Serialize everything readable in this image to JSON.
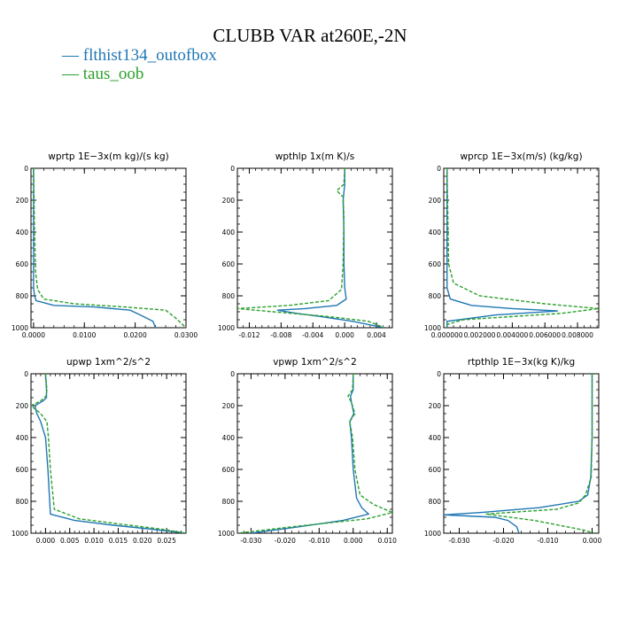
{
  "figure": {
    "title": "CLUBB VAR at260E,-2N",
    "legend": [
      {
        "label": "— flthist134_outofbox",
        "color": "#1f77b4",
        "dash": "solid"
      },
      {
        "label": "— taus_oob",
        "color": "#2ca02c",
        "dash": "dashed"
      }
    ]
  },
  "chart_data": [
    {
      "type": "line",
      "title": "wprtp  1E−3x(m kg)/(s kg)",
      "xlim": [
        -0.0005,
        0.03
      ],
      "ylim": [
        1000,
        0
      ],
      "xticks": [
        0,
        0.01,
        0.02,
        0.03
      ],
      "xticklabels": [
        "0.0000",
        "0.0100",
        "0.0200",
        "0.0300"
      ],
      "yticks": [
        0,
        200,
        400,
        600,
        800,
        1000
      ],
      "yticklabels": [
        "0",
        "200",
        "400",
        "600",
        "800",
        "1000"
      ],
      "series": [
        {
          "name": "flthist134_outofbox",
          "color": "#1f77b4",
          "x": [
            0,
            0,
            0,
            0,
            0.0002,
            0.0005,
            0.004,
            0.012,
            0.019,
            0.021,
            0.0235,
            0.024
          ],
          "y": [
            0,
            200,
            500,
            750,
            800,
            830,
            860,
            870,
            890,
            920,
            960,
            1000
          ]
        },
        {
          "name": "taus_oob",
          "color": "#2ca02c",
          "x": [
            0,
            0.0002,
            0.0004,
            0.0008,
            0.002,
            0.008,
            0.018,
            0.026,
            0.028,
            0.03
          ],
          "y": [
            0,
            400,
            650,
            760,
            820,
            850,
            870,
            890,
            940,
            1000
          ]
        }
      ]
    },
    {
      "type": "line",
      "title": "wpthlp  1x(m K)/s",
      "xlim": [
        -0.0135,
        0.006
      ],
      "ylim": [
        1000,
        0
      ],
      "xticks": [
        -0.012,
        -0.008,
        -0.004,
        0,
        0.004
      ],
      "xticklabels": [
        "-0.012",
        "-0.008",
        "-0.004",
        "0.000",
        "0.004"
      ],
      "yticks": [
        0,
        200,
        400,
        600,
        800,
        1000
      ],
      "yticklabels": [
        "0",
        "200",
        "400",
        "600",
        "800",
        "1000"
      ],
      "series": [
        {
          "name": "flthist134_outofbox",
          "color": "#1f77b4",
          "x": [
            0.0,
            0.0,
            -0.0002,
            -0.0001,
            -0.0001,
            0.0,
            0.0002,
            -0.001,
            -0.005,
            -0.0085,
            -0.006,
            -0.003,
            0.001,
            0.005
          ],
          "y": [
            0,
            100,
            200,
            400,
            600,
            750,
            820,
            860,
            880,
            890,
            910,
            930,
            960,
            1000
          ]
        },
        {
          "name": "taus_oob",
          "color": "#2ca02c",
          "x": [
            0.0,
            -0.0001,
            -0.001,
            -0.0002,
            -0.0001,
            -0.0002,
            -0.0004,
            -0.002,
            -0.007,
            -0.0135,
            -0.009,
            -0.002,
            0.003,
            0.005
          ],
          "y": [
            0,
            100,
            140,
            180,
            300,
            600,
            760,
            830,
            860,
            880,
            900,
            930,
            960,
            1000
          ]
        }
      ]
    },
    {
      "type": "line",
      "title": "wprcp  1E−3x(m/s) (kg/kg)",
      "xlim": [
        -0.0002,
        0.0093
      ],
      "ylim": [
        1000,
        0
      ],
      "xticks": [
        0,
        0.002,
        0.004,
        0.006,
        0.008
      ],
      "xticklabels": [
        "0.000000",
        "0.002000",
        "0.004000",
        "0.006000",
        "0.008000"
      ],
      "yticks": [
        0,
        200,
        400,
        600,
        800,
        1000
      ],
      "yticklabels": [
        "0",
        "200",
        "400",
        "600",
        "800",
        "1000"
      ],
      "series": [
        {
          "name": "flthist134_outofbox",
          "color": "#1f77b4",
          "x": [
            0,
            0,
            0.0002,
            0.0015,
            0.004,
            0.0068,
            0.003,
            0,
            0
          ],
          "y": [
            0,
            750,
            820,
            860,
            880,
            895,
            920,
            960,
            1000
          ]
        },
        {
          "name": "taus_oob",
          "color": "#2ca02c",
          "x": [
            0,
            0.0001,
            0.0004,
            0.002,
            0.006,
            0.0093,
            0.007,
            0.001,
            0,
            0
          ],
          "y": [
            0,
            600,
            720,
            800,
            850,
            880,
            910,
            950,
            980,
            1000
          ]
        }
      ]
    },
    {
      "type": "line",
      "title": "upwp  1xm^2/s^2",
      "xlim": [
        -0.003,
        0.029
      ],
      "ylim": [
        1000,
        0
      ],
      "xticks": [
        0,
        0.005,
        0.01,
        0.015,
        0.02,
        0.025
      ],
      "xticklabels": [
        "0.000",
        "0.005",
        "0.010",
        "0.015",
        "0.020",
        "0.025"
      ],
      "yticks": [
        0,
        200,
        400,
        600,
        800,
        1000
      ],
      "yticklabels": [
        "0",
        "200",
        "400",
        "600",
        "800",
        "1000"
      ],
      "series": [
        {
          "name": "flthist134_outofbox",
          "color": "#1f77b4",
          "x": [
            0,
            0.0002,
            0.0002,
            -0.0005,
            -0.0022,
            -0.0018,
            -0.001,
            0,
            0.0005,
            0.001,
            0.006,
            0.014,
            0.022,
            0.029
          ],
          "y": [
            0,
            100,
            150,
            170,
            200,
            250,
            300,
            400,
            600,
            880,
            920,
            950,
            975,
            1000
          ]
        },
        {
          "name": "taus_oob",
          "color": "#2ca02c",
          "x": [
            0,
            0.0003,
            0.0001,
            -0.001,
            -0.003,
            -0.001,
            0.0003,
            0.0006,
            0.001,
            0.0018,
            0.007,
            0.016,
            0.024,
            0.029
          ],
          "y": [
            0,
            100,
            140,
            170,
            200,
            250,
            300,
            400,
            600,
            850,
            910,
            945,
            975,
            1000
          ]
        }
      ]
    },
    {
      "type": "line",
      "title": "vpwp  1xm^2/s^2",
      "xlim": [
        -0.034,
        0.0115
      ],
      "ylim": [
        1000,
        0
      ],
      "xticks": [
        -0.03,
        -0.02,
        -0.01,
        0,
        0.01
      ],
      "xticklabels": [
        "-0.030",
        "-0.020",
        "-0.010",
        "0.000",
        "0.010"
      ],
      "yticks": [
        0,
        200,
        400,
        600,
        800,
        1000
      ],
      "yticklabels": [
        "0",
        "200",
        "400",
        "600",
        "800",
        "1000"
      ],
      "series": [
        {
          "name": "flthist134_outofbox",
          "color": "#1f77b4",
          "x": [
            0,
            0,
            -0.0008,
            -0.0005,
            0.0002,
            -0.001,
            -0.0005,
            0,
            0.001,
            0.0025,
            0.0045,
            -0.003,
            -0.016,
            -0.03
          ],
          "y": [
            0,
            100,
            140,
            180,
            250,
            300,
            400,
            600,
            780,
            840,
            880,
            920,
            960,
            1000
          ]
        },
        {
          "name": "taus_oob",
          "color": "#2ca02c",
          "x": [
            0,
            -0.0002,
            -0.0015,
            -0.0005,
            0.0005,
            -0.001,
            -0.0002,
            0.0005,
            0.002,
            0.006,
            0.0115,
            0.004,
            -0.018,
            -0.034
          ],
          "y": [
            0,
            100,
            140,
            180,
            250,
            300,
            400,
            600,
            760,
            820,
            870,
            910,
            960,
            1000
          ]
        }
      ]
    },
    {
      "type": "line",
      "title": "rtpthlp  1E−3x(kg K)/kg",
      "xlim": [
        -0.0335,
        0.0015
      ],
      "ylim": [
        1000,
        0
      ],
      "xticks": [
        -0.03,
        -0.02,
        -0.01,
        0
      ],
      "xticklabels": [
        "-0.030",
        "-0.020",
        "-0.010",
        "0.000"
      ],
      "yticks": [
        0,
        200,
        400,
        600,
        800,
        1000
      ],
      "yticklabels": [
        "0",
        "200",
        "400",
        "600",
        "800",
        "1000"
      ],
      "series": [
        {
          "name": "flthist134_outofbox",
          "color": "#1f77b4",
          "x": [
            0,
            0,
            -0.0003,
            -0.001,
            -0.003,
            -0.012,
            -0.025,
            -0.0335,
            -0.022,
            -0.019,
            -0.017,
            -0.0165
          ],
          "y": [
            0,
            400,
            650,
            760,
            800,
            840,
            870,
            885,
            900,
            920,
            960,
            1000
          ]
        },
        {
          "name": "taus_oob",
          "color": "#2ca02c",
          "x": [
            0,
            0,
            -0.0002,
            -0.0015,
            -0.003,
            -0.008,
            -0.024,
            -0.013,
            -0.002,
            0.0005
          ],
          "y": [
            0,
            400,
            650,
            760,
            810,
            850,
            880,
            920,
            980,
            1000
          ]
        }
      ]
    }
  ]
}
